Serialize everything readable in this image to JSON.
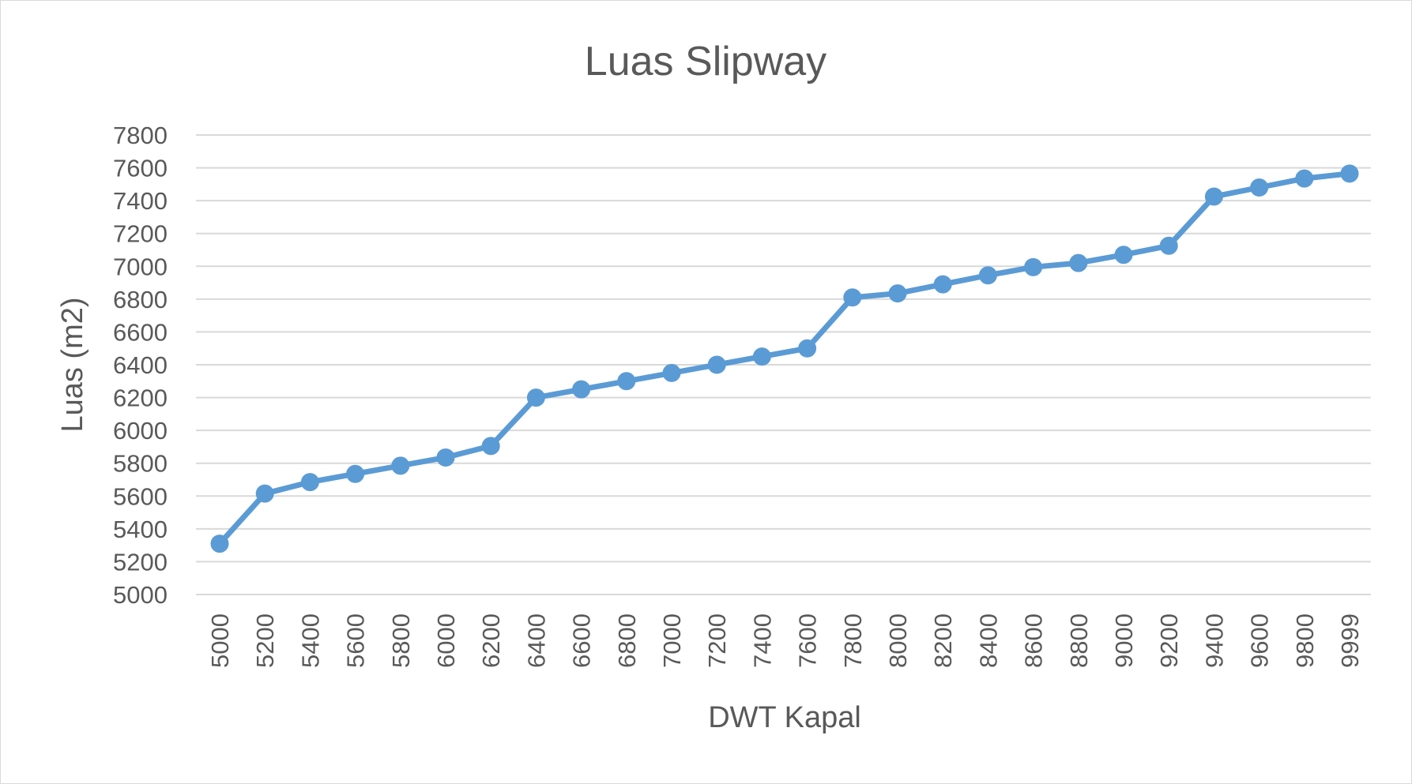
{
  "chart_data": {
    "type": "line",
    "title": "Luas Slipway",
    "xlabel": "DWT Kapal",
    "ylabel": "Luas (m2)",
    "categories": [
      "5000",
      "5200",
      "5400",
      "5600",
      "5800",
      "6000",
      "6200",
      "6400",
      "6600",
      "6800",
      "7000",
      "7200",
      "7400",
      "7600",
      "7800",
      "8000",
      "8200",
      "8400",
      "8600",
      "8800",
      "9000",
      "9200",
      "9400",
      "9600",
      "9800",
      "9999"
    ],
    "series": [
      {
        "values": [
          5310,
          5615,
          5685,
          5735,
          5785,
          5835,
          5905,
          6200,
          6250,
          6300,
          6350,
          6400,
          6450,
          6500,
          6810,
          6835,
          6890,
          6945,
          6995,
          7020,
          7070,
          7125,
          7425,
          7480,
          7535,
          7565
        ]
      }
    ],
    "ylim": [
      5000,
      7800
    ],
    "yticks": [
      "5000",
      "5200",
      "5400",
      "5600",
      "5800",
      "6000",
      "6200",
      "6400",
      "6600",
      "6800",
      "7000",
      "7200",
      "7400",
      "7600",
      "7800"
    ],
    "grid": true,
    "legend": "none",
    "colors": {
      "series": "#5b9bd5",
      "grid": "#d9d9d9",
      "text": "#595959"
    }
  }
}
